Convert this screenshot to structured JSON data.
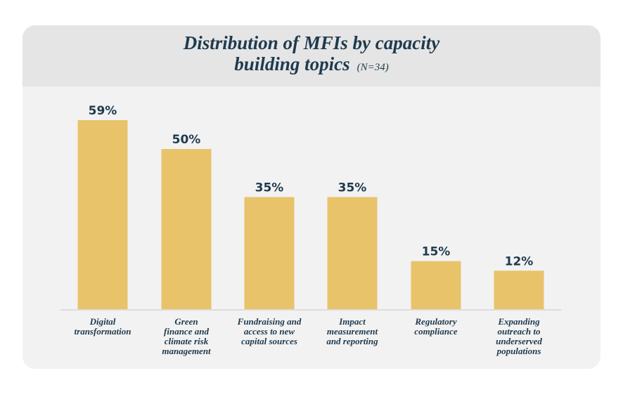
{
  "chart_data": {
    "type": "bar",
    "title_main": "Distribution of MFIs by capacity",
    "title_second": "building topics",
    "title_note": "(N=34)",
    "categories": [
      [
        "Digital",
        "transformation"
      ],
      [
        "Green",
        "finance and",
        "climate risk",
        "management"
      ],
      [
        "Fundraising and",
        "access to new",
        "capital sources"
      ],
      [
        "Impact",
        "measurement",
        "and reporting"
      ],
      [
        "Regulatory",
        "compliance"
      ],
      [
        "Expanding",
        "outreach to",
        "underserved",
        "populations"
      ]
    ],
    "values": [
      59,
      50,
      35,
      35,
      15,
      12
    ],
    "value_labels": [
      "59%",
      "50%",
      "35%",
      "35%",
      "15%",
      "12%"
    ],
    "unit": "%",
    "ylim": [
      0,
      59
    ],
    "xlabel": "",
    "ylabel": "",
    "grid": false,
    "legend": "none",
    "colors": {
      "bar": "#e8c36a",
      "text": "#1f3a4d",
      "axis": "#dcdcdc",
      "header": "#e5e5e5",
      "panel": "#f2f2f2"
    }
  }
}
